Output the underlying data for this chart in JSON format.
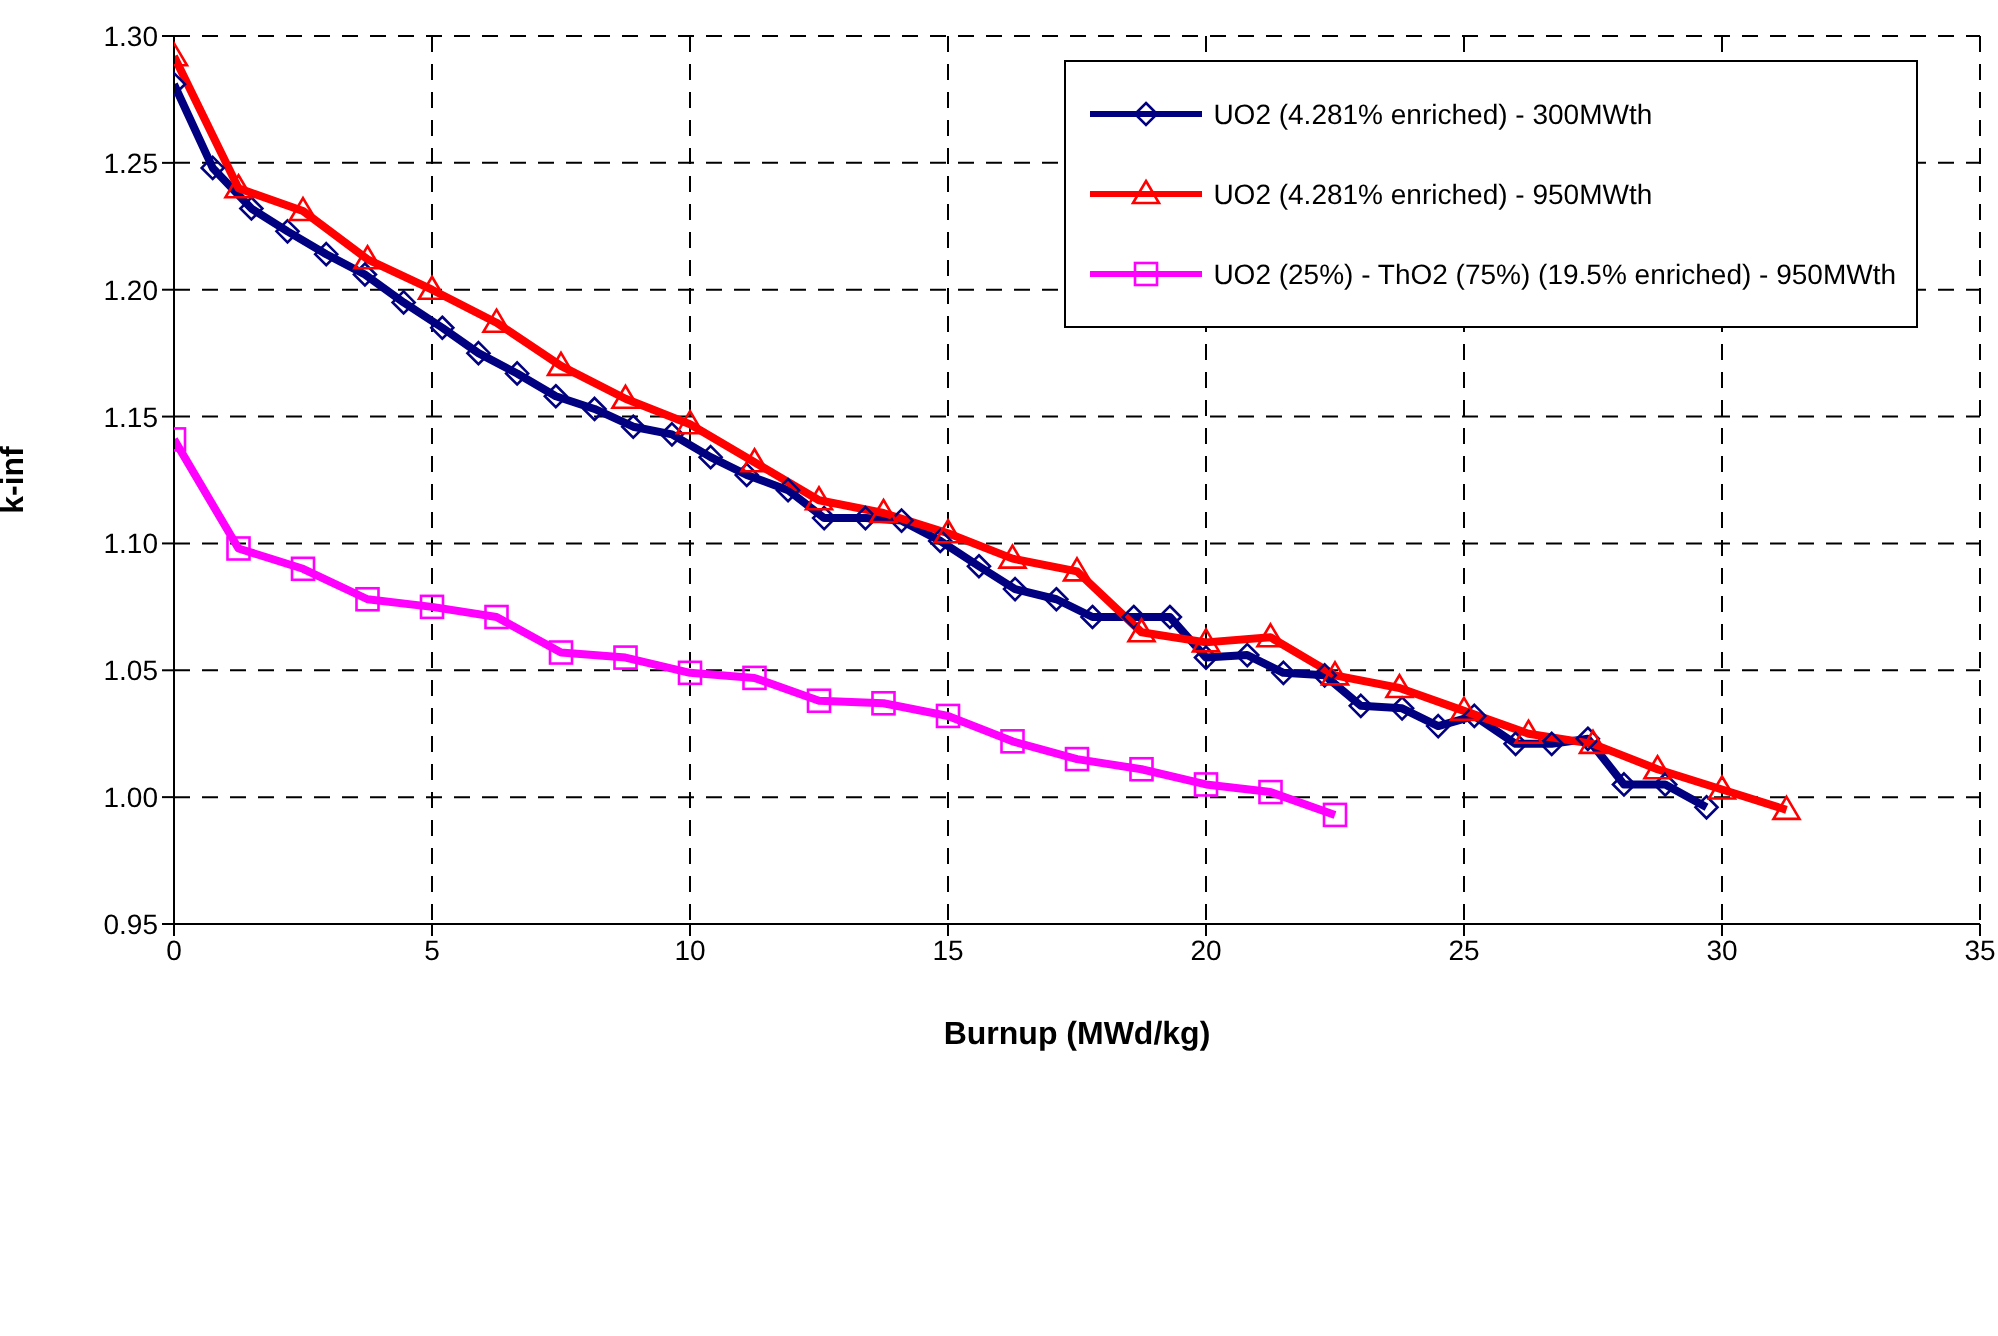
{
  "chart_data": {
    "type": "line",
    "xlabel": "Burnup (MWd/kg)",
    "ylabel": "k-inf",
    "xlim": [
      0,
      35
    ],
    "xticks": [
      0,
      5,
      10,
      15,
      20,
      25,
      30,
      35
    ],
    "ylim": [
      0.95,
      1.3
    ],
    "yticks": [
      {
        "value": 0.95,
        "label": "0.95"
      },
      {
        "value": 1.0,
        "label": "1.00"
      },
      {
        "value": 1.05,
        "label": "1.05"
      },
      {
        "value": 1.1,
        "label": "1.10"
      },
      {
        "value": 1.15,
        "label": "1.15"
      },
      {
        "value": 1.2,
        "label": "1.20"
      },
      {
        "value": 1.25,
        "label": "1.25"
      },
      {
        "value": 1.3,
        "label": "1.30"
      }
    ],
    "grid": true,
    "legend": "top right",
    "line_style": "solid",
    "series": [
      {
        "name": "UO2 (4.281% enriched) - 300MWth",
        "color": "#000080",
        "marker": "diamond",
        "x": [
          0,
          0.75,
          1.5,
          2.2,
          2.95,
          3.7,
          4.45,
          5.2,
          5.9,
          6.65,
          7.4,
          8.15,
          8.9,
          9.65,
          10.4,
          11.1,
          11.9,
          12.6,
          13.4,
          14.1,
          14.85,
          15.6,
          16.3,
          17.1,
          17.8,
          18.6,
          19.3,
          20.0,
          20.8,
          21.5,
          22.3,
          23.0,
          23.8,
          24.5,
          25.2,
          26.0,
          26.7,
          27.4,
          28.1,
          28.9,
          29.7
        ],
        "values": [
          1.281,
          1.248,
          1.232,
          1.223,
          1.214,
          1.206,
          1.195,
          1.185,
          1.175,
          1.167,
          1.158,
          1.153,
          1.146,
          1.143,
          1.134,
          1.127,
          1.121,
          1.11,
          1.11,
          1.109,
          1.101,
          1.091,
          1.082,
          1.078,
          1.071,
          1.071,
          1.071,
          1.055,
          1.056,
          1.049,
          1.048,
          1.036,
          1.035,
          1.028,
          1.032,
          1.021,
          1.021,
          1.023,
          1.005,
          1.005,
          0.996
        ]
      },
      {
        "name": "UO2 (4.281% enriched) - 950MWth",
        "color": "#ff0000",
        "marker": "triangle",
        "x": [
          0,
          1.25,
          2.5,
          3.75,
          5.0,
          6.25,
          7.5,
          8.75,
          10.0,
          11.25,
          12.5,
          13.75,
          15.0,
          16.25,
          17.5,
          18.75,
          20.0,
          21.25,
          22.5,
          23.75,
          25.0,
          26.25,
          27.5,
          28.75,
          30.0,
          31.25
        ],
        "values": [
          1.292,
          1.24,
          1.231,
          1.212,
          1.2,
          1.187,
          1.17,
          1.157,
          1.147,
          1.132,
          1.117,
          1.112,
          1.104,
          1.094,
          1.089,
          1.065,
          1.061,
          1.063,
          1.048,
          1.043,
          1.034,
          1.025,
          1.021,
          1.011,
          1.003,
          0.995
        ]
      },
      {
        "name": "UO2 (25%) - ThO2 (75%) (19.5% enriched) - 950MWth",
        "color": "#ff00ff",
        "marker": "square",
        "x": [
          0,
          1.25,
          2.5,
          3.75,
          5.0,
          6.25,
          7.5,
          8.75,
          10.0,
          11.25,
          12.5,
          13.75,
          15.0,
          16.25,
          17.5,
          18.75,
          20.0,
          21.25,
          22.5
        ],
        "values": [
          1.141,
          1.098,
          1.09,
          1.078,
          1.075,
          1.071,
          1.057,
          1.055,
          1.049,
          1.047,
          1.038,
          1.037,
          1.032,
          1.022,
          1.015,
          1.011,
          1.005,
          1.002,
          0.993
        ]
      }
    ]
  }
}
